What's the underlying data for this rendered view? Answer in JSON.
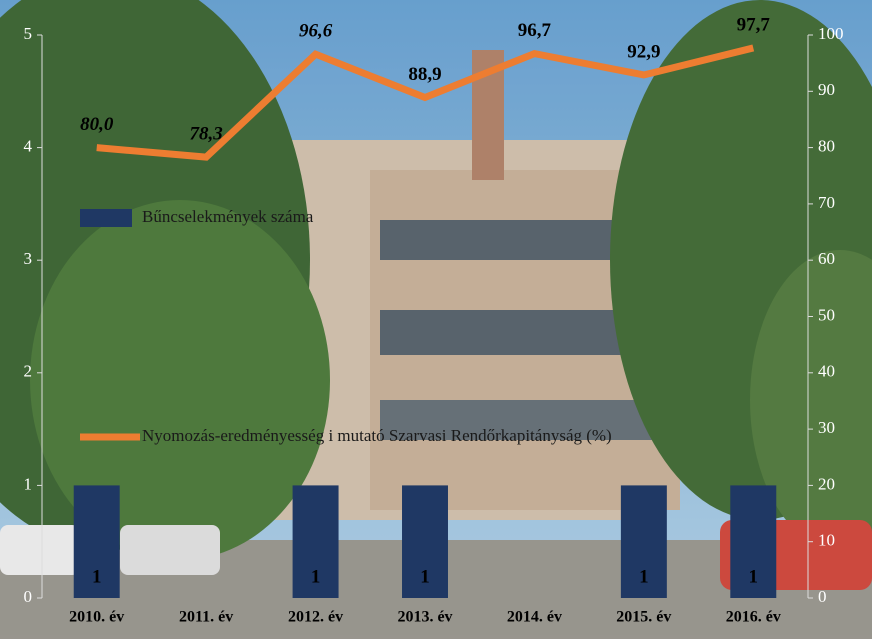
{
  "chart_data": {
    "type": "bar-line",
    "categories": [
      "2010. év",
      "2011. év",
      "2012. év",
      "2013. év",
      "2014. év",
      "2015. év",
      "2016. év"
    ],
    "series": [
      {
        "name": "Bűncselekmények száma",
        "type": "bar",
        "color": "#1f3864",
        "values": [
          1,
          null,
          1,
          1,
          null,
          1,
          1
        ]
      },
      {
        "name": "Nyomozás-eredményesség i mutató Szarvasi Rendőrkapitányság (%)",
        "type": "line",
        "axis": "y2",
        "color": "#ed7d31",
        "values": [
          80.0,
          78.3,
          96.6,
          88.9,
          96.7,
          92.9,
          97.7
        ],
        "value_labels": [
          "80,0",
          "78,3",
          "96,6",
          "88,9",
          "96,7",
          "92,9",
          "97,7"
        ]
      }
    ],
    "ylim": [
      0,
      5
    ],
    "yticks": [
      0,
      1,
      2,
      3,
      4,
      5
    ],
    "y2lim": [
      0,
      100
    ],
    "y2ticks": [
      0,
      10,
      20,
      30,
      40,
      50,
      60,
      70,
      80,
      90,
      100
    ]
  }
}
